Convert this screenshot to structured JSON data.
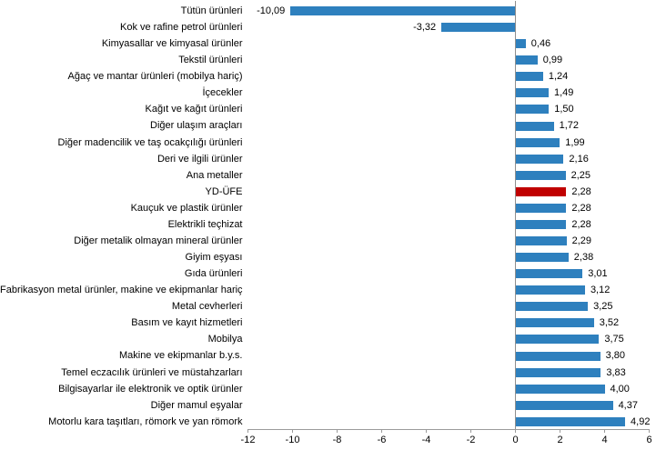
{
  "chart_data": {
    "type": "bar",
    "orientation": "horizontal",
    "title": "",
    "xlabel": "",
    "ylabel": "",
    "grid": false,
    "legend": "none",
    "xlim": [
      -12,
      6
    ],
    "x_ticks": [
      -12,
      -10,
      -8,
      -6,
      -4,
      -2,
      0,
      2,
      4,
      6
    ],
    "x_tick_labels": [
      "-12",
      "-10",
      "-8",
      "-6",
      "-4",
      "-2",
      "0",
      "2",
      "4",
      "6"
    ],
    "bar_color": "#2E80BE",
    "highlight_color": "#C00000",
    "highlight_category": "YD-ÜFE",
    "categories": [
      "Tütün ürünleri",
      "Kok ve rafine petrol ürünleri",
      "Kimyasallar ve kimyasal ürünler",
      "Tekstil ürünleri",
      "Ağaç ve mantar ürünleri (mobilya hariç)",
      "İçecekler",
      "Kağıt ve kağıt ürünleri",
      "Diğer ulaşım araçları",
      "Diğer madencilik ve taş ocakçılığı ürünleri",
      "Deri ve ilgili ürünler",
      "Ana metaller",
      "YD-ÜFE",
      "Kauçuk ve plastik ürünler",
      "Elektrikli teçhizat",
      "Diğer metalik olmayan mineral ürünler",
      "Giyim eşyası",
      "Gıda ürünleri",
      "Fabrikasyon metal ürünler, makine ve ekipmanlar hariç",
      "Metal cevherleri",
      "Basım ve kayıt hizmetleri",
      "Mobilya",
      "Makine ve ekipmanlar b.y.s.",
      "Temel eczacılık ürünleri ve müstahzarları",
      "Bilgisayarlar ile elektronik ve optik ürünler",
      "Diğer mamul eşyalar",
      "Motorlu kara taşıtları, römork ve yan römork"
    ],
    "values": [
      -10.09,
      -3.32,
      0.46,
      0.99,
      1.24,
      1.49,
      1.5,
      1.72,
      1.99,
      2.16,
      2.25,
      2.28,
      2.28,
      2.28,
      2.29,
      2.38,
      3.01,
      3.12,
      3.25,
      3.52,
      3.75,
      3.8,
      3.83,
      4.0,
      4.37,
      4.92
    ],
    "value_labels": [
      "-10,09",
      "-3,32",
      "0,46",
      "0,99",
      "1,24",
      "1,49",
      "1,50",
      "1,72",
      "1,99",
      "2,16",
      "2,25",
      "2,28",
      "2,28",
      "2,28",
      "2,29",
      "2,38",
      "3,01",
      "3,12",
      "3,25",
      "3,52",
      "3,75",
      "3,80",
      "3,83",
      "4,00",
      "4,37",
      "4,92"
    ]
  }
}
